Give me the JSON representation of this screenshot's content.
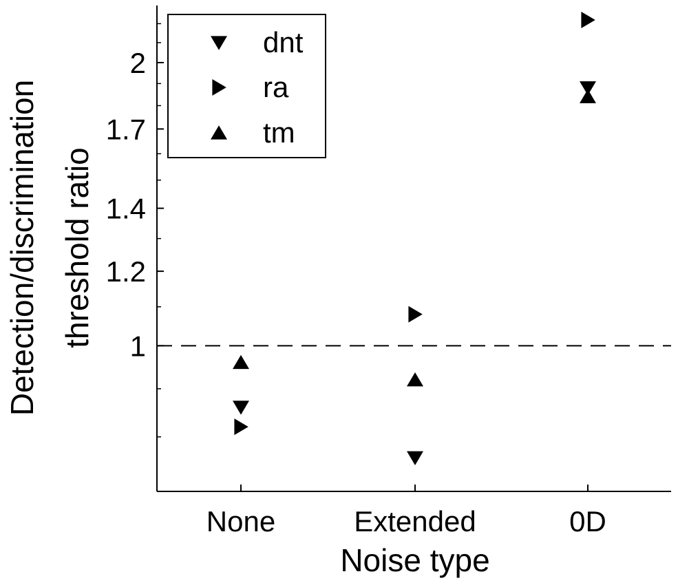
{
  "chart_data": {
    "type": "scatter",
    "xlabel": "Noise type",
    "ylabel_lines": [
      "Detection/discrimination",
      "threshold ratio"
    ],
    "categories": [
      "None",
      "Extended",
      "0D"
    ],
    "y_scale": "log",
    "ylim": [
      0.7,
      2.3
    ],
    "y_ticks": [
      1,
      1.2,
      1.4,
      1.7,
      2
    ],
    "y_tick_labels": [
      "1",
      "1.2",
      "1.4",
      "1.7",
      "2"
    ],
    "y_minor_ticks": [
      0.8,
      0.9,
      1.1,
      1.3,
      1.5,
      1.6,
      1.8,
      1.9,
      2.1,
      2.2
    ],
    "reference_line": {
      "y": 1,
      "style": "dashed"
    },
    "grid": false,
    "legend_position": "top-left",
    "series": [
      {
        "name": "dnt",
        "marker": "triangle-down",
        "values": [
          0.86,
          0.76,
          1.88
        ]
      },
      {
        "name": "ra",
        "marker": "triangle-right",
        "values": [
          0.82,
          1.08,
          2.22
        ]
      },
      {
        "name": "tm",
        "marker": "triangle-up",
        "values": [
          0.96,
          0.92,
          1.84
        ]
      }
    ]
  }
}
